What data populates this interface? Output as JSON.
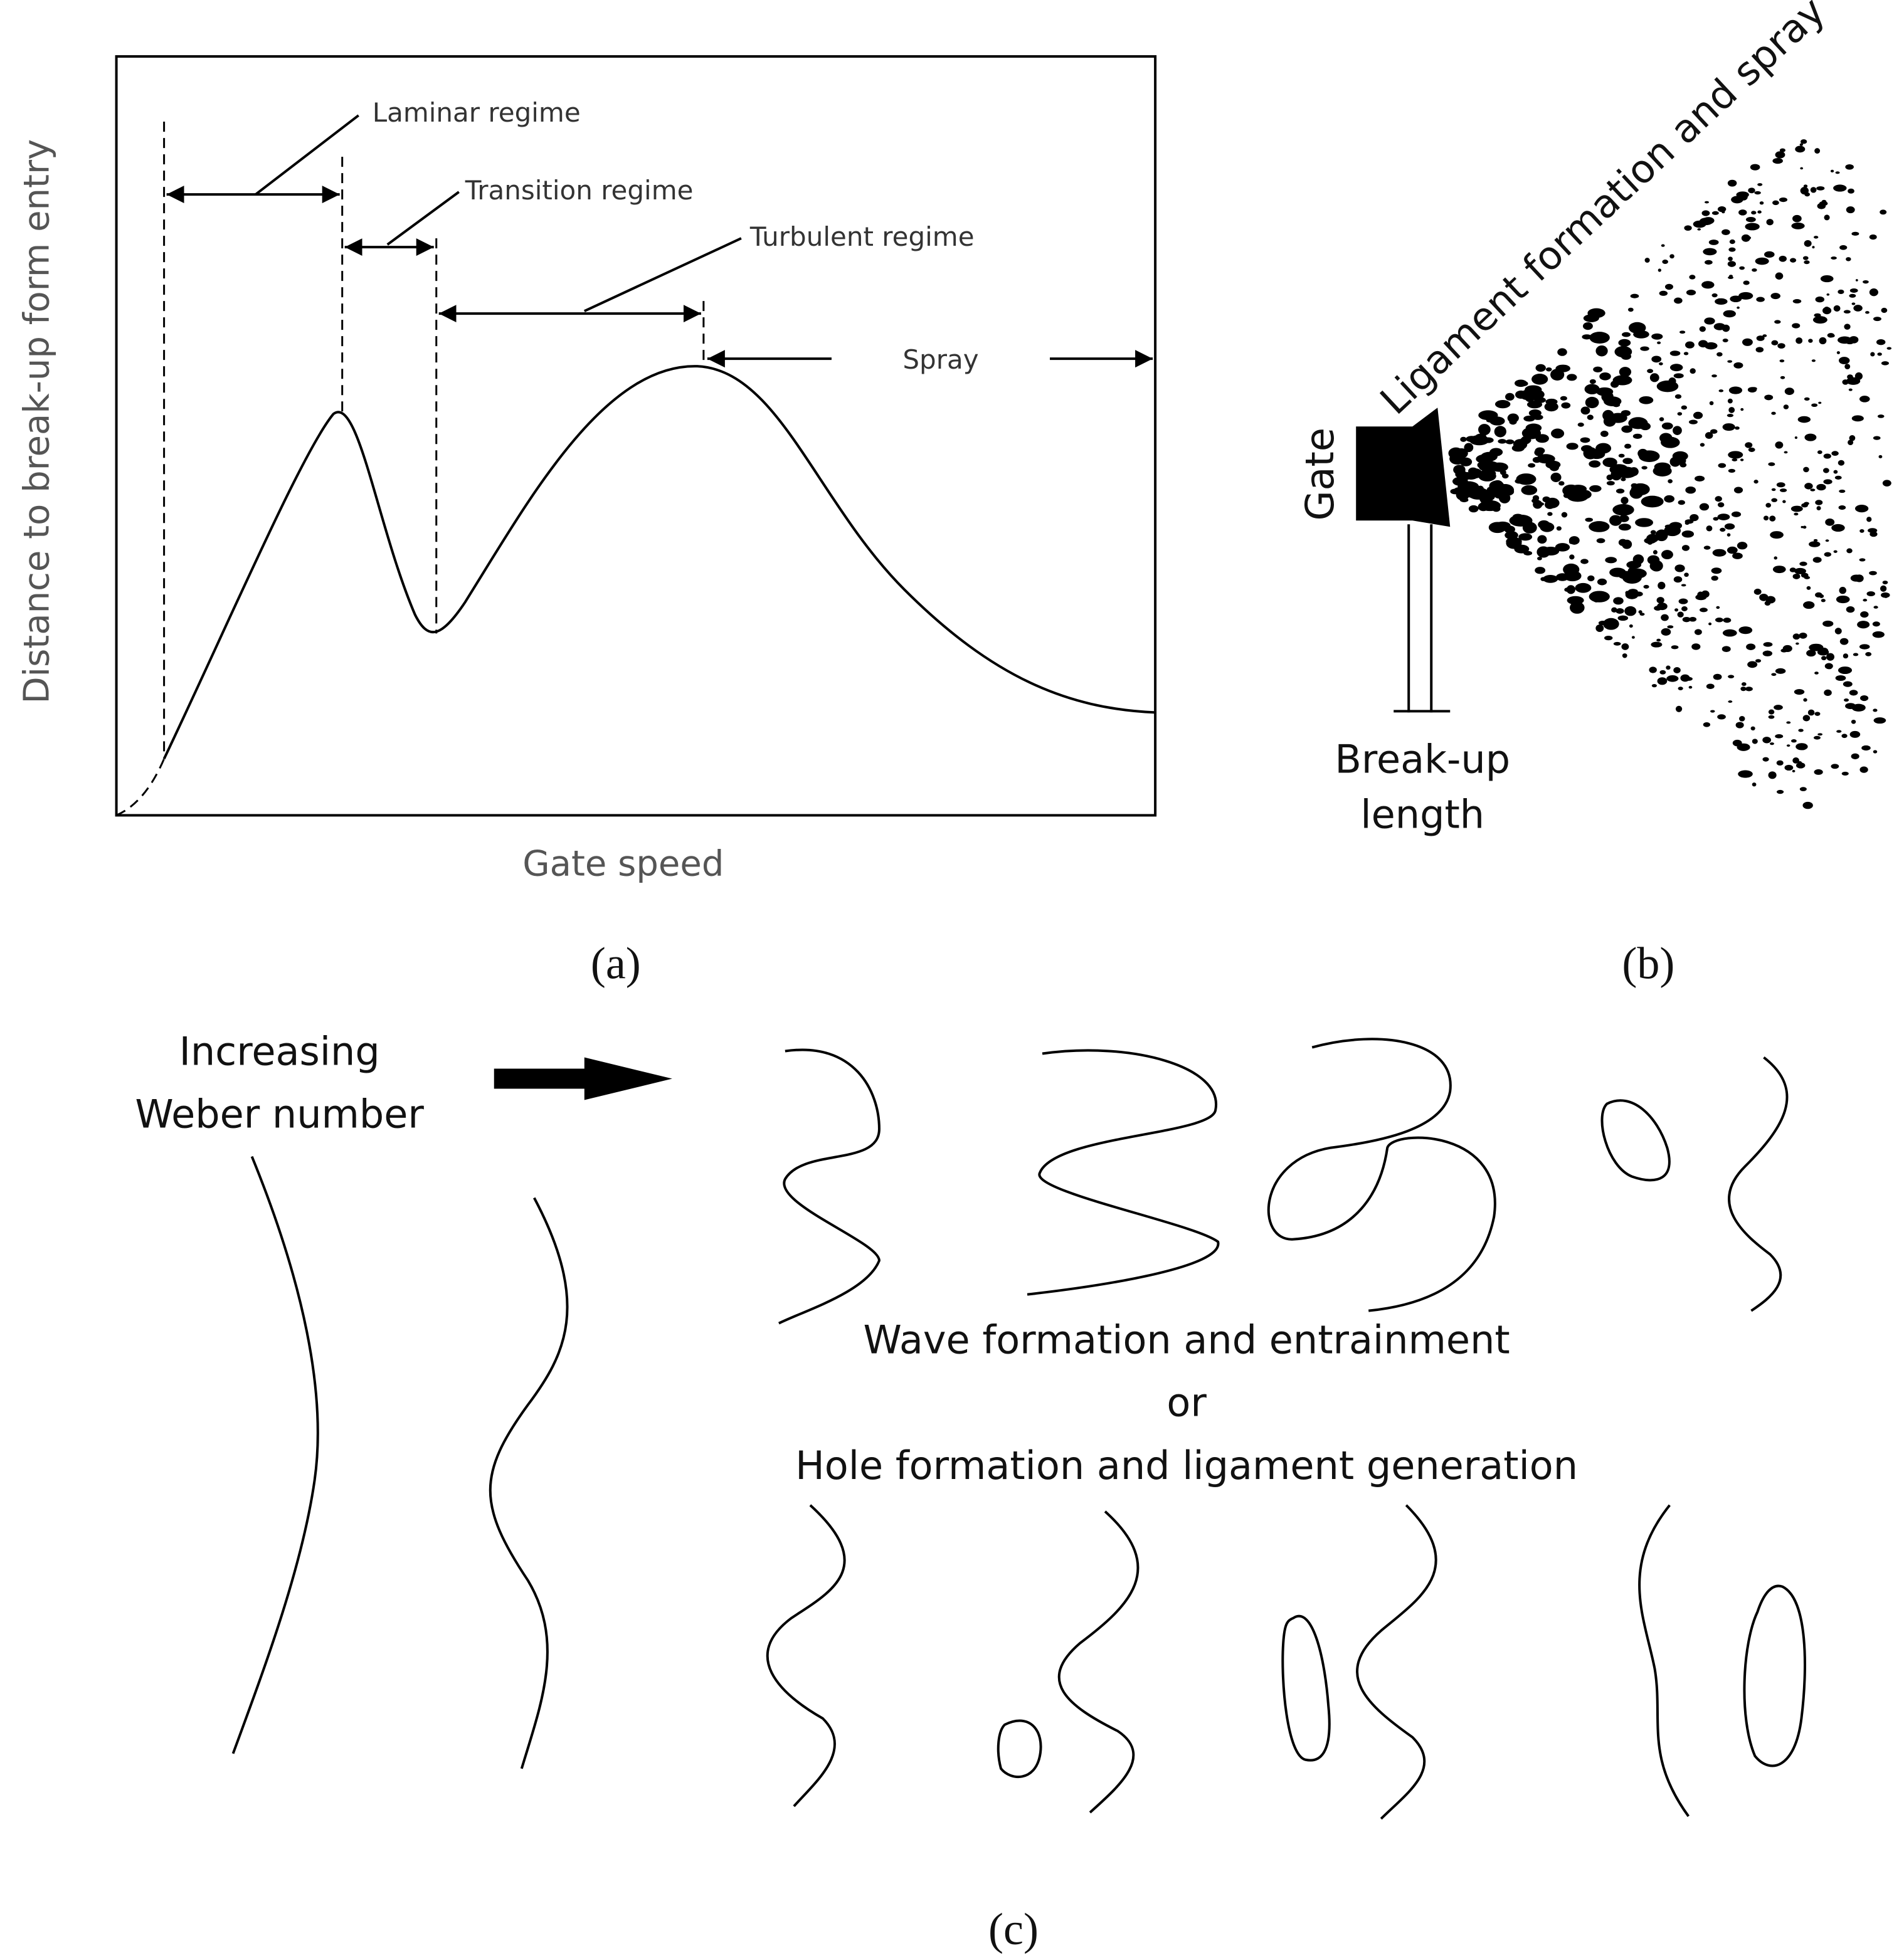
{
  "panel_a": {
    "y_axis_label": "Distance to break-up form entry",
    "x_axis_label": "Gate speed",
    "annotations": [
      "Laminar regime",
      "Transition regime",
      "Turbulent regime",
      "Spray"
    ],
    "caption": "(a)"
  },
  "panel_b": {
    "title": "Ligament formation and spray",
    "gate_label": "Gate",
    "breakup_label": [
      "Break-up",
      "length"
    ],
    "caption": "(b)"
  },
  "panel_c": {
    "arrow_label": [
      "Increasing",
      "Weber number"
    ],
    "center_text": [
      "Wave formation and entrainment",
      "or",
      "Hole formation and ligament generation"
    ],
    "caption": "(c)"
  }
}
